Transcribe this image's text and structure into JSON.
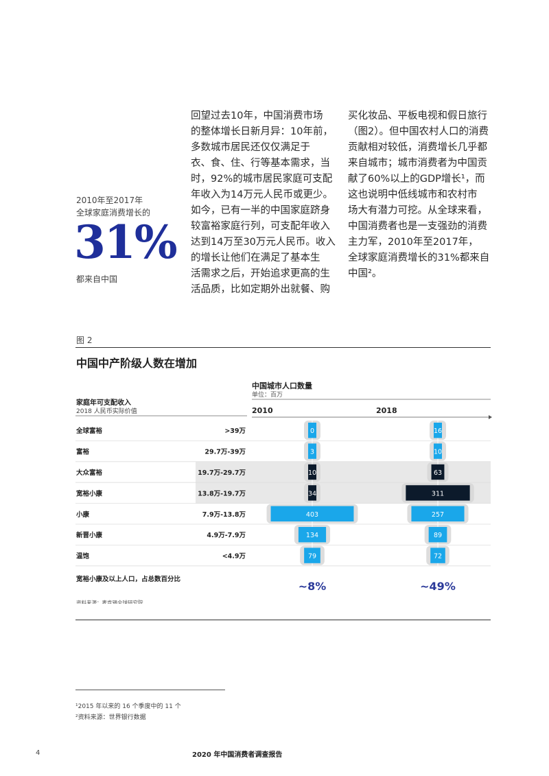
{
  "sidebar_stat": {
    "caption_line1": "2010年至2017年",
    "caption_line2": "全球家庭消费增长的",
    "big_number": "31%",
    "caption_after": "都来自中国"
  },
  "body": {
    "column1": "回望过去10年，中国消费市场\n的整体增长日新月异：10年前，\n多数城市居民还仅仅满足于\n衣、食、住、行等基本需求，当\n时，92%的城市居民家庭可支配\n年收入为14万元人民币或更少。\n如今，已有一半的中国家庭跻身\n较富裕家庭行列，可支配年收入\n达到14万至30万元人民币。收入\n的增长让他们在满足了基本生\n活需求之后，开始追求更高的生\n活品质，比如定期外出就餐、购",
    "column2": "买化妆品、平板电视和假日旅行\n（图2）。但中国农村人口的消费\n贡献相对较低，消费增长几乎都\n来自城市；城市消费者为中国贡\n献了60%以上的GDP增长¹，而\n这也说明中低线城市和农村市\n场大有潜力可挖。从全球来看，\n中国消费者也是一支强劲的消费\n主力军，2010年至2017年，\n全球家庭消费增长的31%都来自\n中国²。"
  },
  "figure": {
    "label": "图 2",
    "title": "中国中产阶级人数在增加",
    "source": "资料来源：麦肯锡全球研究院"
  },
  "chart_data": {
    "type": "bar",
    "title": "中国城市人口数量",
    "unit": "单位：百万",
    "row_header": "家庭年可支配收入",
    "row_subheader": "2018 人民币实际价值",
    "categories": [
      "全球富裕",
      "富裕",
      "大众富裕",
      "宽裕小康",
      "小康",
      "新晋小康",
      "温饱"
    ],
    "ranges": [
      ">39万",
      "29.7万-39万",
      "19.7万-29.7万",
      "13.8万-19.7万",
      "7.9万-13.8万",
      "4.9万-7.9万",
      "<4.9万"
    ],
    "highlighted_categories": [
      "大众富裕",
      "宽裕小康"
    ],
    "series": [
      {
        "name": "2010",
        "values": [
          0,
          3,
          10,
          34,
          403,
          134,
          79
        ],
        "share_label": "~8%"
      },
      {
        "name": "2018",
        "values": [
          16,
          10,
          63,
          311,
          257,
          89,
          72
        ],
        "share_label": "~49%"
      }
    ],
    "share_row_label": "宽裕小康及以上人口，占总数百分比",
    "colors": {
      "light": "#1aa7ea",
      "dark": "#0c1a2b",
      "silhouette": "#d4d4d4",
      "highlight_bg": "#e8e8e8",
      "share_text": "#2b3a9a"
    }
  },
  "footnotes": [
    "¹2015 年以来的 16 个季度中的 11 个",
    "²资料来源：世界银行数据"
  ],
  "footer": {
    "page_number": "4",
    "report_title": "2020 年中国消费者调查报告"
  },
  "colors": {
    "accent": "#1f2f9a"
  }
}
